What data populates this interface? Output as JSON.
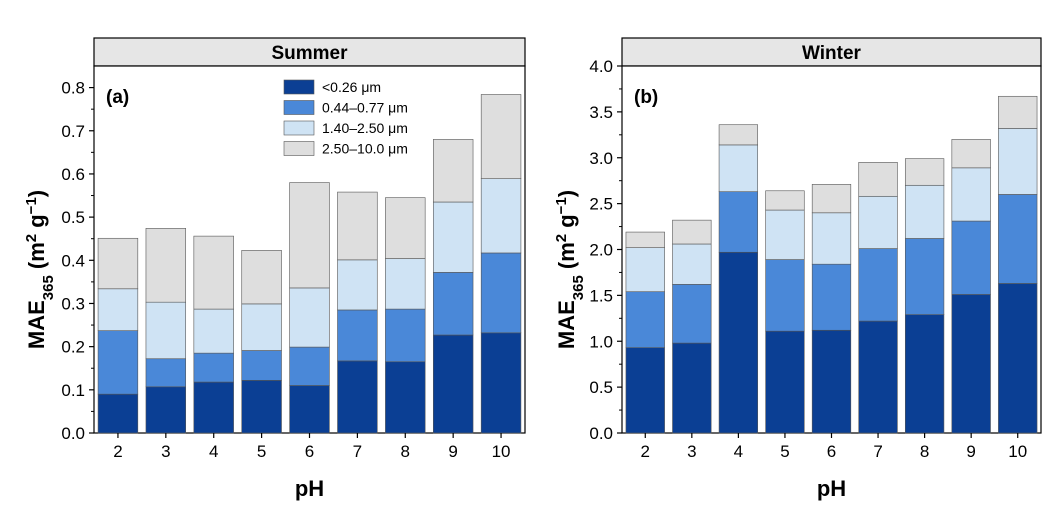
{
  "chart_data": [
    {
      "type": "bar",
      "stacked": true,
      "title": "Summer",
      "panel_label": "(a)",
      "xlabel": "pH",
      "ylabel": "MAE365 (m2 g-1)",
      "ylabel_parts": {
        "base": "MAE",
        "sub": "365",
        "open": " (m",
        "sup1": "2",
        "mid": " g",
        "sup2": "−1",
        "close": ")"
      },
      "categories": [
        "2",
        "3",
        "4",
        "5",
        "6",
        "7",
        "8",
        "9",
        "10"
      ],
      "ylim": [
        0,
        0.85
      ],
      "yticks": [
        "0.0",
        "0.1",
        "0.2",
        "0.3",
        "0.4",
        "0.5",
        "0.6",
        "0.7",
        "0.8"
      ],
      "ytick_values": [
        0,
        0.1,
        0.2,
        0.3,
        0.4,
        0.5,
        0.6,
        0.7,
        0.8
      ],
      "legend_position": "top-right",
      "series": [
        {
          "name": "<0.26 μm",
          "color": "#0b3f94",
          "values": [
            0.09,
            0.107,
            0.118,
            0.122,
            0.11,
            0.167,
            0.165,
            0.227,
            0.232
          ]
        },
        {
          "name": "0.44–0.77 μm",
          "color": "#4a88d8",
          "values": [
            0.147,
            0.065,
            0.067,
            0.069,
            0.089,
            0.118,
            0.122,
            0.145,
            0.185
          ]
        },
        {
          "name": "1.40–2.50 μm",
          "color": "#cfe3f4",
          "values": [
            0.097,
            0.131,
            0.102,
            0.108,
            0.137,
            0.116,
            0.117,
            0.163,
            0.172
          ]
        },
        {
          "name": "2.50–10.0 μm",
          "color": "#dedede",
          "values": [
            0.117,
            0.171,
            0.169,
            0.124,
            0.244,
            0.157,
            0.141,
            0.145,
            0.195
          ]
        }
      ]
    },
    {
      "type": "bar",
      "stacked": true,
      "title": "Winter",
      "panel_label": "(b)",
      "xlabel": "pH",
      "ylabel": "MAE365 (m2 g-1)",
      "ylabel_parts": {
        "base": "MAE",
        "sub": "365",
        "open": " (m",
        "sup1": "2",
        "mid": " g",
        "sup2": "−1",
        "close": ")"
      },
      "categories": [
        "2",
        "3",
        "4",
        "5",
        "6",
        "7",
        "8",
        "9",
        "10"
      ],
      "ylim": [
        0,
        4.0
      ],
      "yticks": [
        "0.0",
        "0.5",
        "1.0",
        "1.5",
        "2.0",
        "2.5",
        "3.0",
        "3.5",
        "4.0"
      ],
      "ytick_values": [
        0,
        0.5,
        1.0,
        1.5,
        2.0,
        2.5,
        3.0,
        3.5,
        4.0
      ],
      "series": [
        {
          "name": "<0.26 μm",
          "color": "#0b3f94",
          "values": [
            0.93,
            0.98,
            1.97,
            1.11,
            1.12,
            1.22,
            1.29,
            1.51,
            1.63
          ]
        },
        {
          "name": "0.44–0.77 μm",
          "color": "#4a88d8",
          "values": [
            0.61,
            0.64,
            0.66,
            0.78,
            0.72,
            0.79,
            0.83,
            0.8,
            0.97
          ]
        },
        {
          "name": "1.40–2.50 μm",
          "color": "#cfe3f4",
          "values": [
            0.48,
            0.44,
            0.51,
            0.54,
            0.56,
            0.57,
            0.58,
            0.58,
            0.72
          ]
        },
        {
          "name": "2.50–10.0 μm",
          "color": "#dedede",
          "values": [
            0.17,
            0.26,
            0.22,
            0.21,
            0.31,
            0.37,
            0.29,
            0.31,
            0.35
          ]
        }
      ]
    }
  ]
}
